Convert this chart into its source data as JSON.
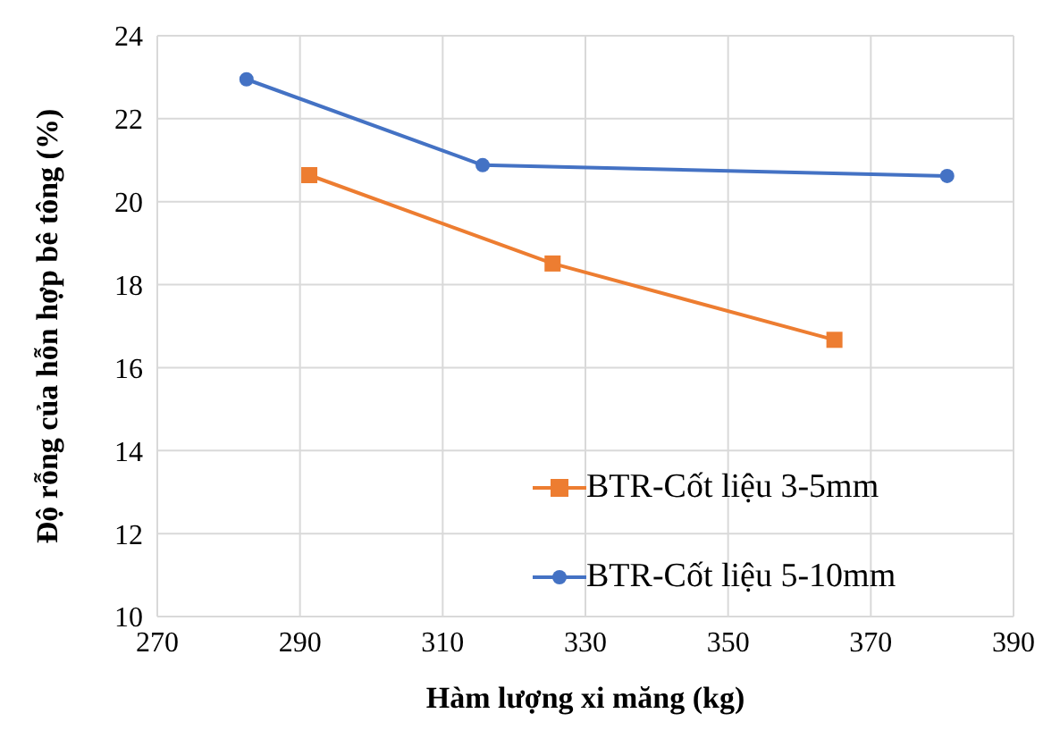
{
  "chart_data": {
    "type": "line",
    "xlabel": "Hàm lượng xi măng (kg)",
    "ylabel": "Độ rỗng của hỗn hợp bê tông (%)",
    "xlim": [
      270,
      390
    ],
    "xticks": [
      270,
      290,
      310,
      330,
      350,
      370,
      390
    ],
    "ylim": [
      10,
      24
    ],
    "yticks": [
      10,
      12,
      14,
      16,
      18,
      20,
      22,
      24
    ],
    "grid": true,
    "legend": "bottom right",
    "series": [
      {
        "name": "BTR-Cốt liệu 3-5mm",
        "color": "#ed7d31",
        "marker": "square",
        "x": [
          291.3,
          325.4,
          364.9
        ],
        "values": [
          20.64,
          18.51,
          16.67
        ]
      },
      {
        "name": "BTR-Cốt liệu 5-10mm",
        "color": "#4472c4",
        "marker": "circle",
        "x": [
          282.5,
          315.6,
          380.7
        ],
        "values": [
          22.95,
          20.88,
          20.62
        ]
      }
    ]
  }
}
